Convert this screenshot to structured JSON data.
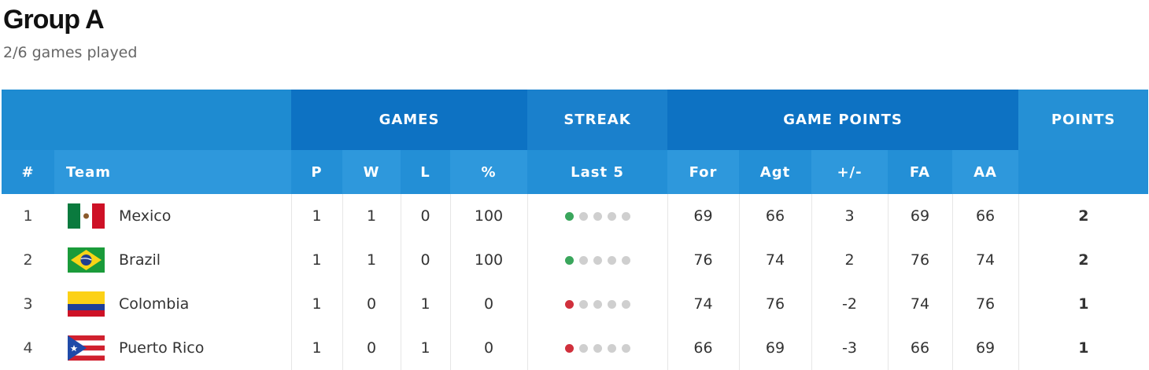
{
  "group": {
    "title": "Group A",
    "subtitle": "2/6 games played"
  },
  "header_groups": {
    "games": "GAMES",
    "streak": "STREAK",
    "game_points": "GAME POINTS",
    "points": "POINTS"
  },
  "columns": {
    "rank": "#",
    "team": "Team",
    "p": "P",
    "w": "W",
    "l": "L",
    "pct": "%",
    "last5": "Last 5",
    "for": "For",
    "agt": "Agt",
    "diff": "+/-",
    "fa": "FA",
    "aa": "AA"
  },
  "colors": {
    "win": "#3aa65c",
    "loss": "#d0303c",
    "empty": "#cfcfcf"
  },
  "rows": [
    {
      "rank": "1",
      "team": "Mexico",
      "flag": "mexico-flag-icon",
      "p": "1",
      "w": "1",
      "l": "0",
      "pct": "100",
      "streak": [
        "W",
        "",
        "",
        "",
        ""
      ],
      "for": "69",
      "agt": "66",
      "diff": "3",
      "fa": "69",
      "aa": "66",
      "points": "2"
    },
    {
      "rank": "2",
      "team": "Brazil",
      "flag": "brazil-flag-icon",
      "p": "1",
      "w": "1",
      "l": "0",
      "pct": "100",
      "streak": [
        "W",
        "",
        "",
        "",
        ""
      ],
      "for": "76",
      "agt": "74",
      "diff": "2",
      "fa": "76",
      "aa": "74",
      "points": "2"
    },
    {
      "rank": "3",
      "team": "Colombia",
      "flag": "colombia-flag-icon",
      "p": "1",
      "w": "0",
      "l": "1",
      "pct": "0",
      "streak": [
        "L",
        "",
        "",
        "",
        ""
      ],
      "for": "74",
      "agt": "76",
      "diff": "-2",
      "fa": "74",
      "aa": "76",
      "points": "1"
    },
    {
      "rank": "4",
      "team": "Puerto Rico",
      "flag": "puerto-rico-flag-icon",
      "p": "1",
      "w": "0",
      "l": "1",
      "pct": "0",
      "streak": [
        "L",
        "",
        "",
        "",
        ""
      ],
      "for": "66",
      "agt": "69",
      "diff": "-3",
      "fa": "66",
      "aa": "69",
      "points": "1"
    }
  ]
}
